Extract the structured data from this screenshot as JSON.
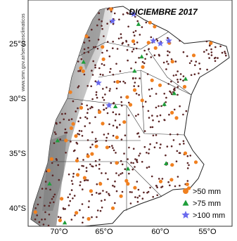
{
  "title": "DICIEMBRE 2017",
  "source": "www.smn.gov.ar/serviciosclimaticos",
  "lat_labels": [
    "25°S",
    "30°S",
    "35°S",
    "40°S"
  ],
  "lon_labels": [
    "70°O",
    "65°O",
    "60°O",
    "55°O"
  ],
  "legend": [
    ">50 mm",
    ">75 mm",
    ">100 mm"
  ]
}
